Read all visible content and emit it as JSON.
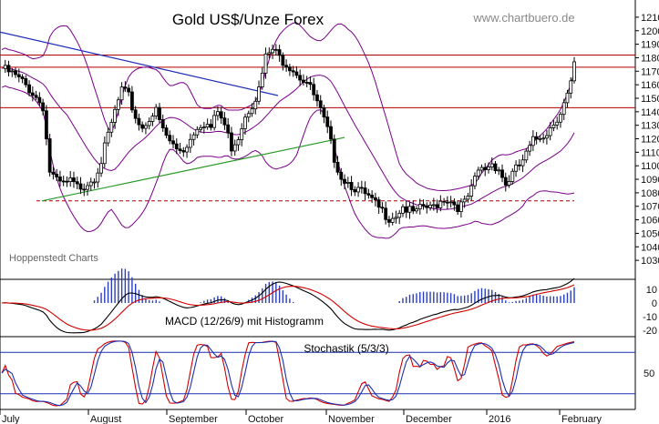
{
  "header": {
    "title": "Gold US$/Unze Forex",
    "source": "www.chartbuero.de",
    "watermark": "Hoppenstedt Charts"
  },
  "colors": {
    "grid": "#000000",
    "bollinger": "#7a008a",
    "trendline_blue": "#1f2fb8",
    "trendline_green": "#2a9a2a",
    "resistance_red": "#b00000",
    "macd_red": "#d00000",
    "macd_black": "#000000",
    "histogram": "#2a3fbf",
    "stoch_red": "#d00000",
    "stoch_blue": "#1c2fb0"
  },
  "chart_data": [
    {
      "panel": "price",
      "type": "candlestick",
      "y_ticks": [
        "1210",
        "1200",
        "1190",
        "1180",
        "1170",
        "1160",
        "1150",
        "1140",
        "1130",
        "1120",
        "1110",
        "1100",
        "1090",
        "1080",
        "1070",
        "1060",
        "1050",
        "1040",
        "1030"
      ],
      "ylim": [
        1022,
        1216
      ],
      "months": [
        "July",
        "August",
        "September",
        "October",
        "November",
        "December",
        "2016",
        "February"
      ],
      "resistance_levels": [
        1182,
        1173,
        1143
      ],
      "support_dashed": 1074,
      "close_path": [
        [
          0,
          1172
        ],
        [
          3,
          1168
        ],
        [
          6,
          1162
        ],
        [
          9,
          1154
        ],
        [
          12,
          1144
        ],
        [
          14,
          1096
        ],
        [
          16,
          1088
        ],
        [
          18,
          1086
        ],
        [
          20,
          1088
        ],
        [
          22,
          1084
        ],
        [
          24,
          1086
        ],
        [
          27,
          1092
        ],
        [
          29,
          1104
        ],
        [
          31,
          1122
        ],
        [
          33,
          1140
        ],
        [
          35,
          1156
        ],
        [
          37,
          1151
        ],
        [
          39,
          1136
        ],
        [
          41,
          1128
        ],
        [
          43,
          1136
        ],
        [
          45,
          1140
        ],
        [
          47,
          1126
        ],
        [
          49,
          1118
        ],
        [
          51,
          1112
        ],
        [
          53,
          1112
        ],
        [
          55,
          1120
        ],
        [
          57,
          1130
        ],
        [
          59,
          1132
        ],
        [
          61,
          1128
        ],
        [
          63,
          1140
        ],
        [
          65,
          1130
        ],
        [
          67,
          1114
        ],
        [
          69,
          1122
        ],
        [
          71,
          1138
        ],
        [
          73,
          1146
        ],
        [
          75,
          1156
        ],
        [
          77,
          1180
        ],
        [
          79,
          1186
        ],
        [
          81,
          1180
        ],
        [
          83,
          1176
        ],
        [
          85,
          1172
        ],
        [
          87,
          1166
        ],
        [
          89,
          1162
        ],
        [
          91,
          1152
        ],
        [
          93,
          1140
        ],
        [
          95,
          1126
        ],
        [
          97,
          1106
        ],
        [
          99,
          1092
        ],
        [
          101,
          1088
        ],
        [
          103,
          1084
        ],
        [
          105,
          1080
        ],
        [
          107,
          1076
        ],
        [
          109,
          1071
        ],
        [
          111,
          1066
        ],
        [
          113,
          1062
        ],
        [
          115,
          1064
        ],
        [
          117,
          1070
        ],
        [
          119,
          1066
        ],
        [
          121,
          1065
        ],
        [
          123,
          1070
        ],
        [
          125,
          1068
        ],
        [
          127,
          1072
        ],
        [
          129,
          1076
        ],
        [
          131,
          1074
        ],
        [
          133,
          1070
        ],
        [
          135,
          1072
        ],
        [
          137,
          1082
        ],
        [
          139,
          1096
        ],
        [
          141,
          1098
        ],
        [
          143,
          1102
        ],
        [
          145,
          1098
        ],
        [
          147,
          1086
        ],
        [
          149,
          1094
        ],
        [
          151,
          1100
        ],
        [
          153,
          1108
        ],
        [
          155,
          1118
        ],
        [
          157,
          1122
        ],
        [
          159,
          1125
        ],
        [
          161,
          1132
        ],
        [
          163,
          1140
        ],
        [
          165,
          1152
        ],
        [
          166,
          1160
        ],
        [
          167,
          1174
        ]
      ]
    },
    {
      "panel": "macd",
      "type": "line",
      "label": "MACD (12/26/9) mit Histogramm",
      "y_ticks": [
        "10",
        "0",
        "-10",
        "-20"
      ],
      "ylim": [
        -24,
        16
      ]
    },
    {
      "panel": "stochastic",
      "type": "line",
      "label": "Stochastik (5/3/3)",
      "y_ticks": [
        "50"
      ],
      "ylim": [
        0,
        100
      ],
      "levels": [
        80,
        20
      ]
    }
  ]
}
